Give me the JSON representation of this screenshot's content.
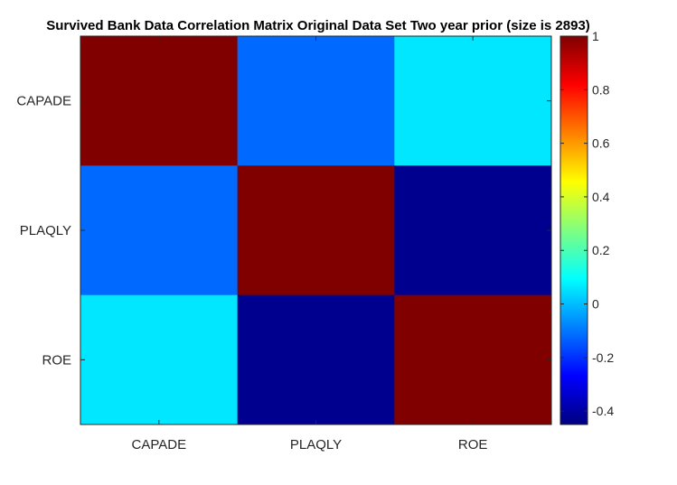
{
  "chart_data": {
    "type": "heatmap",
    "title": "Survived Bank Data Correlation Matrix Original Data Set Two year prior (size is 2893)",
    "xlabel": "",
    "ylabel": "",
    "x_categories": [
      "CAPADE",
      "PLAQLY",
      "ROE"
    ],
    "y_categories": [
      "CAPADE",
      "PLAQLY",
      "ROE"
    ],
    "values": [
      [
        1.0,
        -0.12,
        0.06
      ],
      [
        -0.12,
        1.0,
        -0.43
      ],
      [
        0.06,
        -0.43,
        1.0
      ]
    ],
    "colormap": "jet",
    "clim": [
      -0.45,
      1.0
    ],
    "colorbar": {
      "ticks": [
        1,
        0.8,
        0.6,
        0.4,
        0.2,
        0,
        -0.2,
        -0.4
      ],
      "tick_labels": [
        "1",
        "0.8",
        "0.6",
        "0.4",
        "0.2",
        "0",
        "-0.2",
        "-0.4"
      ],
      "placement": "right"
    },
    "grid": false
  },
  "colors": {
    "axis": "#262626",
    "background": "#ffffff"
  }
}
